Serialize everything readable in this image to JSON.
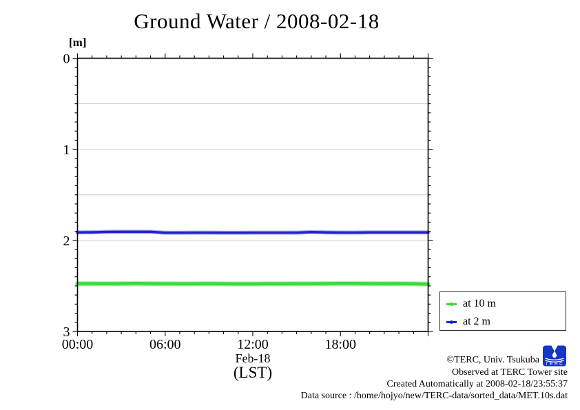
{
  "title": "Ground Water / 2008-02-18",
  "axes": {
    "y_unit": "[m]",
    "x_date_label": "Feb-18",
    "x_tz_label": "(LST)"
  },
  "chart_data": {
    "type": "line",
    "title": "Ground Water / 2008-02-18",
    "xlabel": "Feb-18 (LST)",
    "ylabel": "[m] (ground water depth)",
    "xlim": [
      0,
      24
    ],
    "ylim": [
      0,
      3
    ],
    "y_axis_direction": "increasing downward (depth)",
    "x_ticks": [
      {
        "v": 0,
        "label": "00:00"
      },
      {
        "v": 6,
        "label": "06:00"
      },
      {
        "v": 12,
        "label": "12:00"
      },
      {
        "v": 18,
        "label": "18:00"
      }
    ],
    "y_ticks": [
      {
        "v": 0,
        "label": "0"
      },
      {
        "v": 1,
        "label": "1"
      },
      {
        "v": 2,
        "label": "2"
      },
      {
        "v": 3,
        "label": "3"
      }
    ],
    "gridlines_y": [
      0.5,
      1.0,
      1.5,
      2.0,
      2.5
    ],
    "x_minor_step_hours": 1,
    "y_minor_step": 0.1,
    "layout": {
      "grid": true,
      "grid_color": "#c8c8c8",
      "axis_color": "#000000",
      "ticks": "outward, mirrored on all four borders",
      "legend_position": "right-bottom, boxed"
    },
    "x": [
      0,
      1,
      2,
      3,
      4,
      5,
      6,
      7,
      8,
      9,
      10,
      11,
      12,
      13,
      14,
      15,
      16,
      17,
      18,
      19,
      20,
      21,
      22,
      23,
      24
    ],
    "series": [
      {
        "name": "at 10 m",
        "color": "#35dd35",
        "width": 4.5,
        "values": [
          2.474,
          2.474,
          2.475,
          2.474,
          2.473,
          2.474,
          2.475,
          2.476,
          2.476,
          2.475,
          2.476,
          2.477,
          2.477,
          2.476,
          2.476,
          2.475,
          2.475,
          2.474,
          2.473,
          2.473,
          2.474,
          2.475,
          2.474,
          2.476,
          2.479
        ]
      },
      {
        "name": "at 2 m",
        "color": "#2121cc",
        "width": 3.5,
        "values": [
          1.913,
          1.911,
          1.907,
          1.906,
          1.906,
          1.906,
          1.916,
          1.916,
          1.915,
          1.915,
          1.916,
          1.916,
          1.915,
          1.915,
          1.915,
          1.915,
          1.909,
          1.913,
          1.914,
          1.914,
          1.913,
          1.913,
          1.912,
          1.913,
          1.913
        ]
      }
    ]
  },
  "footer": {
    "copyright": "©TERC, Univ. Tsukuba",
    "observed": "Observed at TERC Tower site",
    "created": "Created Automatically at 2008-02-18/23:55:37",
    "datasource": "Data source : /home/hojyo/new/TERC-data/sorted_data/MET.10s.dat",
    "logo_text": "TERC"
  }
}
